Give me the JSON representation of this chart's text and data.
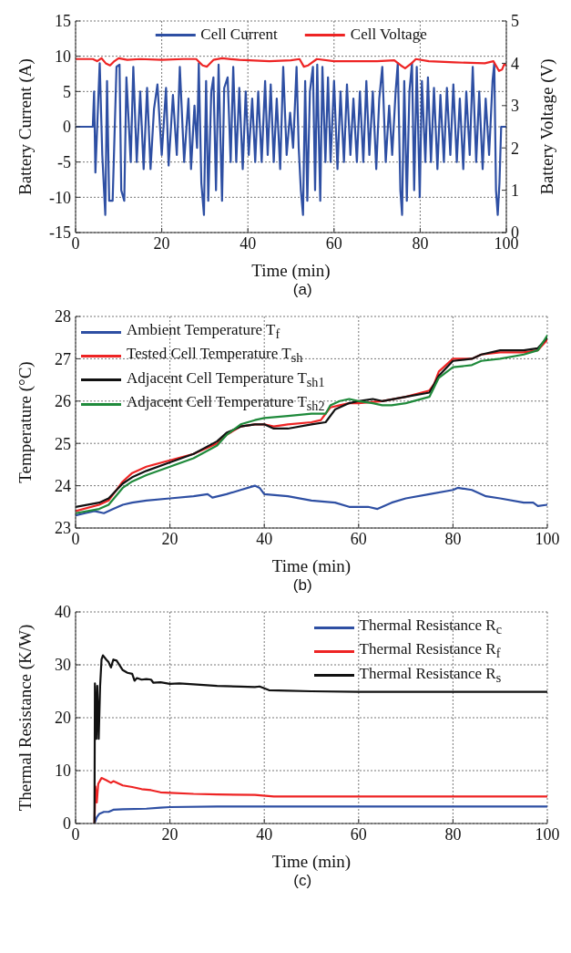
{
  "chart_data": [
    {
      "type": "line",
      "xlabel": "Time (min)",
      "ylabel": "Battery Current (A)",
      "y2label": "Battery Voltage (V)",
      "xlim": [
        0,
        100
      ],
      "xticks": [
        0,
        20,
        40,
        60,
        80,
        100
      ],
      "ylim": [
        -15,
        15
      ],
      "yticks": [
        -15,
        -10,
        -5,
        0,
        5,
        10,
        15
      ],
      "y2lim": [
        0,
        5
      ],
      "y2ticks": [
        0,
        1,
        2,
        3,
        4,
        5
      ],
      "grid": true,
      "legend": "top",
      "annotations": [
        "(a)"
      ],
      "series": [
        {
          "name": "Cell Current",
          "color": "#2e4fa3",
          "x": [
            0,
            4,
            4.3,
            4.6,
            5.6,
            6.2,
            6.9,
            7.3,
            7.8,
            8.6,
            9.5,
            10.2,
            10.6,
            11.3,
            11.8,
            12.8,
            13.4,
            14.2,
            15,
            15.8,
            16.6,
            17.4,
            18.2,
            19,
            20,
            21,
            21.6,
            22.6,
            23.5,
            24.2,
            25.2,
            26.2,
            26.8,
            27.6,
            28.2,
            28.6,
            29.2,
            29.8,
            30.3,
            30.8,
            31.5,
            32,
            32.6,
            33.2,
            34,
            34.5,
            35.3,
            36,
            36.6,
            37.3,
            38,
            38.8,
            39.5,
            40.2,
            41,
            41.7,
            42.4,
            43.2,
            44,
            44.6,
            45.3,
            46,
            46.7,
            47.5,
            48.2,
            49,
            49.8,
            50.5,
            51.3,
            51.8,
            52.3,
            52.8,
            53.3,
            53.8,
            54.4,
            55.1,
            55.6,
            56.1,
            56.8,
            57.3,
            58,
            58.6,
            59.2,
            60,
            60.8,
            61.5,
            62.3,
            63,
            63.8,
            64.5,
            65.3,
            66,
            66.8,
            67.5,
            68.2,
            69,
            69.8,
            70.5,
            71.2,
            72,
            72.8,
            73.5,
            74.3,
            74.8,
            75.4,
            75.8,
            76.3,
            76.9,
            77.5,
            78.1,
            78.6,
            79.2,
            79.9,
            80.4,
            81.2,
            81.8,
            82.5,
            83.2,
            84,
            84.7,
            85.5,
            86.2,
            87,
            87.7,
            88.5,
            89.2,
            90,
            90.7,
            91.5,
            92.2,
            93,
            93.7,
            94.5,
            95.2,
            96,
            96.8,
            97.2,
            97.6,
            98,
            98.4,
            98.8,
            100
          ],
          "values": [
            0,
            0,
            5,
            -6.5,
            9,
            -4,
            -12.5,
            6.5,
            -10.5,
            -10.5,
            8.5,
            8.8,
            -9,
            -10.5,
            7,
            -5,
            8.5,
            -5,
            5,
            -6,
            5.5,
            -6,
            2.5,
            6,
            -4,
            5.5,
            -5.5,
            4.5,
            -4,
            8.5,
            -5,
            4,
            -6,
            3,
            -3,
            9,
            -8,
            -12.5,
            6.5,
            -10.5,
            5,
            7,
            -9,
            8.8,
            -10.5,
            5.5,
            7,
            -5,
            8.5,
            -5,
            5.5,
            -6,
            5,
            -4,
            4,
            -5,
            5,
            -5,
            6.5,
            -4,
            6,
            -5,
            4,
            -6,
            8.5,
            -4,
            2,
            -3,
            8.5,
            -3,
            -9,
            -12.5,
            6.5,
            -10.5,
            5,
            8.5,
            -9,
            8.8,
            -10.5,
            8.5,
            -5,
            7,
            -5,
            6.5,
            -6,
            5,
            -5,
            6,
            -4,
            4,
            -5,
            5,
            -5,
            6.5,
            -4,
            5,
            -6,
            4,
            8.5,
            -5,
            3,
            -4,
            5,
            9,
            -9,
            -12.5,
            6.5,
            -10.5,
            5,
            9,
            -9,
            8.5,
            -10,
            6.5,
            -5,
            7,
            -5,
            5.5,
            -6,
            4.5,
            -5,
            5.5,
            -4,
            6,
            -5,
            4,
            -6,
            5,
            -4,
            8.5,
            -5,
            5,
            -6,
            4,
            -4,
            6.5,
            9,
            -9,
            -12.5,
            -8,
            0,
            0
          ]
        },
        {
          "name": "Cell Voltage",
          "color": "#ee2424",
          "axis": "y2",
          "x": [
            0,
            4,
            5,
            6,
            7,
            8,
            9,
            10,
            12,
            15,
            20,
            25,
            28,
            29.5,
            30.5,
            32,
            34,
            38,
            45,
            50,
            52,
            53,
            54,
            56,
            60,
            65,
            70,
            74,
            75.5,
            76.5,
            78,
            79,
            82,
            88,
            95,
            97,
            98.3,
            99,
            99.5,
            100
          ],
          "values": [
            4.1,
            4.1,
            4.05,
            4.12,
            4.0,
            3.95,
            4.05,
            4.12,
            4.08,
            4.1,
            4.08,
            4.1,
            4.1,
            3.95,
            3.92,
            4.08,
            4.12,
            4.08,
            4.05,
            4.07,
            4.1,
            3.92,
            3.95,
            4.1,
            4.05,
            4.05,
            4.05,
            4.07,
            3.95,
            3.88,
            4.0,
            4.1,
            4.05,
            4.02,
            4.0,
            4.05,
            3.82,
            3.85,
            3.98,
            3.95
          ]
        }
      ]
    },
    {
      "type": "line",
      "xlabel": "Time (min)",
      "ylabel": "Temperature (°C)",
      "xlim": [
        0,
        100
      ],
      "xticks": [
        0,
        20,
        40,
        60,
        80,
        100
      ],
      "ylim": [
        23,
        28
      ],
      "yticks": [
        23,
        24,
        25,
        26,
        27,
        28
      ],
      "grid": true,
      "legend": "top left",
      "annotations": [
        "(b)"
      ],
      "series": [
        {
          "name": "Ambient Temperature T$_{f}$",
          "color": "#2e4fa3",
          "x": [
            0,
            2,
            4,
            6,
            8,
            10,
            12,
            15,
            20,
            25,
            28,
            29,
            32,
            35,
            38,
            39,
            40,
            45,
            50,
            55,
            58,
            62,
            64,
            67,
            70,
            75,
            80,
            81,
            84,
            87,
            90,
            95,
            97,
            98,
            100
          ],
          "values": [
            23.3,
            23.35,
            23.4,
            23.35,
            23.45,
            23.55,
            23.6,
            23.65,
            23.7,
            23.75,
            23.8,
            23.72,
            23.8,
            23.9,
            24.0,
            23.95,
            23.8,
            23.75,
            23.65,
            23.6,
            23.5,
            23.5,
            23.45,
            23.6,
            23.7,
            23.8,
            23.9,
            23.95,
            23.9,
            23.75,
            23.7,
            23.6,
            23.6,
            23.52,
            23.55
          ]
        },
        {
          "name": "Tested Cell Temperature T$_{sh}$",
          "color": "#ee2424",
          "x": [
            0,
            5,
            7,
            8,
            10,
            12,
            15,
            20,
            25,
            30,
            32,
            35,
            38,
            40,
            42,
            45,
            50,
            52,
            54,
            56,
            58,
            60,
            65,
            70,
            75,
            76,
            77,
            80,
            82,
            84,
            86,
            90,
            95,
            98,
            100
          ],
          "values": [
            23.4,
            23.55,
            23.65,
            23.8,
            24.1,
            24.3,
            24.45,
            24.6,
            24.75,
            25.0,
            25.2,
            25.4,
            25.45,
            25.45,
            25.4,
            25.45,
            25.5,
            25.55,
            25.85,
            25.9,
            25.95,
            25.95,
            26.0,
            26.1,
            26.25,
            26.4,
            26.7,
            27.0,
            27.0,
            27.0,
            27.1,
            27.15,
            27.15,
            27.2,
            27.45
          ]
        },
        {
          "name": "Adjacent Cell Temperature T$_{sh1}$",
          "color": "#111111",
          "x": [
            0,
            5,
            7,
            10,
            12,
            15,
            20,
            25,
            30,
            32,
            35,
            38,
            40,
            42,
            45,
            50,
            53,
            55,
            58,
            60,
            63,
            65,
            70,
            75,
            77,
            80,
            84,
            86,
            90,
            95,
            98,
            100
          ],
          "values": [
            23.5,
            23.6,
            23.7,
            24.05,
            24.2,
            24.35,
            24.55,
            24.75,
            25.05,
            25.25,
            25.4,
            25.45,
            25.45,
            25.35,
            25.35,
            25.45,
            25.5,
            25.8,
            25.95,
            26.0,
            26.05,
            26.0,
            26.1,
            26.2,
            26.6,
            26.95,
            27.0,
            27.1,
            27.2,
            27.2,
            27.25,
            27.5
          ]
        },
        {
          "name": "Adjacent Cell Temperature T$_{sh2}$",
          "color": "#1f8a3b",
          "x": [
            0,
            5,
            7,
            10,
            12,
            15,
            20,
            25,
            30,
            32,
            35,
            38,
            40,
            45,
            50,
            53,
            54,
            56,
            58,
            60,
            63,
            65,
            67,
            70,
            75,
            77,
            80,
            84,
            86,
            90,
            95,
            98,
            100
          ],
          "values": [
            23.35,
            23.45,
            23.55,
            23.95,
            24.1,
            24.25,
            24.45,
            24.65,
            24.95,
            25.2,
            25.45,
            25.55,
            25.6,
            25.65,
            25.7,
            25.7,
            25.9,
            26.0,
            26.05,
            26.0,
            25.95,
            25.9,
            25.9,
            25.95,
            26.1,
            26.55,
            26.8,
            26.85,
            26.95,
            27.0,
            27.1,
            27.2,
            27.55
          ]
        }
      ]
    },
    {
      "type": "line",
      "xlabel": "Time (min)",
      "ylabel": "Thermal Resistance (K/W)",
      "xlim": [
        0,
        100
      ],
      "xticks": [
        0,
        20,
        40,
        60,
        80,
        100
      ],
      "ylim": [
        0,
        40
      ],
      "yticks": [
        0,
        10,
        20,
        30,
        40
      ],
      "grid": true,
      "legend": "top right",
      "annotations": [
        "(c)"
      ],
      "series": [
        {
          "name": "Thermal Resistance R$_{c}$",
          "color": "#2e4fa3",
          "x": [
            4,
            4.5,
            5,
            6,
            7,
            8,
            10,
            15,
            18,
            20,
            30,
            40,
            100
          ],
          "values": [
            0,
            1.2,
            1.8,
            2.2,
            2.2,
            2.6,
            2.7,
            2.8,
            3.0,
            3.1,
            3.2,
            3.2,
            3.2
          ]
        },
        {
          "name": "Thermal Resistance R$_{f}$",
          "color": "#ee2424",
          "x": [
            4,
            4.2,
            4.5,
            4.8,
            5.5,
            6.5,
            7.5,
            8,
            10,
            12,
            14,
            16,
            18,
            20,
            25,
            30,
            38,
            42,
            50,
            100
          ],
          "values": [
            0,
            7,
            4,
            7.5,
            8.6,
            8.2,
            7.7,
            8,
            7.2,
            6.9,
            6.5,
            6.3,
            5.9,
            5.8,
            5.6,
            5.5,
            5.4,
            5.1,
            5.1,
            5.1
          ]
        },
        {
          "name": "Thermal Resistance R$_{s}$",
          "color": "#111111",
          "x": [
            4,
            4.1,
            4.4,
            4.6,
            4.9,
            5.2,
            5.5,
            5.8,
            6.5,
            7,
            7.5,
            8,
            8.7,
            10,
            11,
            12,
            12.5,
            13,
            14,
            15,
            16,
            16.5,
            18,
            20,
            22,
            25,
            30,
            35,
            38,
            39,
            41,
            45,
            50,
            60,
            70,
            100
          ],
          "values": [
            0,
            26.5,
            16,
            26,
            16,
            26,
            31,
            31.8,
            31,
            30.5,
            29.5,
            31,
            30.8,
            29,
            28.5,
            28.3,
            27,
            27.5,
            27.2,
            27.3,
            27.2,
            26.6,
            26.7,
            26.4,
            26.5,
            26.3,
            26,
            25.9,
            25.8,
            25.9,
            25.2,
            25.1,
            25,
            24.9,
            24.9,
            24.9
          ]
        }
      ]
    }
  ]
}
